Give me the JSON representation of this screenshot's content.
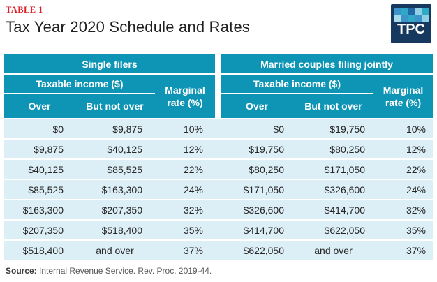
{
  "header": {
    "table_label": "TABLE 1",
    "title": "Tax Year 2020 Schedule and Rates"
  },
  "logo": {
    "text": "TPC",
    "background": "#17395f",
    "squares": [
      "#3d94cb",
      "#2fa9c6",
      "#2268a8",
      "#8fd0e5",
      "#2fa9c6",
      "#a7dbea",
      "#3d94cb",
      "#2fa9c6",
      "#3d94cb",
      "#8fd0e5"
    ]
  },
  "colors": {
    "header_teal": "#0e95b5",
    "row_light_blue": "#dceef6",
    "label_red": "#e01b24",
    "logo_navy": "#17395f"
  },
  "table": {
    "sections": [
      {
        "title": "Single filers",
        "income_header": "Taxable income ($)",
        "col_over": "Over",
        "col_but_not_over": "But not over",
        "col_rate": "Marginal rate (%)",
        "rows": [
          {
            "over": "$0",
            "but_not_over": "$9,875",
            "rate": "10%"
          },
          {
            "over": "$9,875",
            "but_not_over": "$40,125",
            "rate": "12%"
          },
          {
            "over": "$40,125",
            "but_not_over": "$85,525",
            "rate": "22%"
          },
          {
            "over": "$85,525",
            "but_not_over": "$163,300",
            "rate": "24%"
          },
          {
            "over": "$163,300",
            "but_not_over": "$207,350",
            "rate": "32%"
          },
          {
            "over": "$207,350",
            "but_not_over": "$518,400",
            "rate": "35%"
          },
          {
            "over": "$518,400",
            "but_not_over": "and over",
            "rate": "37%"
          }
        ]
      },
      {
        "title": "Married couples filing jointly",
        "income_header": "Taxable income ($)",
        "col_over": "Over",
        "col_but_not_over": "But not over",
        "col_rate": "Marginal rate (%)",
        "rows": [
          {
            "over": "$0",
            "but_not_over": "$19,750",
            "rate": "10%"
          },
          {
            "over": "$19,750",
            "but_not_over": "$80,250",
            "rate": "12%"
          },
          {
            "over": "$80,250",
            "but_not_over": "$171,050",
            "rate": "22%"
          },
          {
            "over": "$171,050",
            "but_not_over": "$326,600",
            "rate": "24%"
          },
          {
            "over": "$326,600",
            "but_not_over": "$414,700",
            "rate": "32%"
          },
          {
            "over": "$414,700",
            "but_not_over": "$622,050",
            "rate": "35%"
          },
          {
            "over": "$622,050",
            "but_not_over": "and over",
            "rate": "37%"
          }
        ]
      }
    ]
  },
  "footer": {
    "source_label": "Source:",
    "source_text": " Internal Revenue Service. Rev. Proc. 2019-44."
  }
}
